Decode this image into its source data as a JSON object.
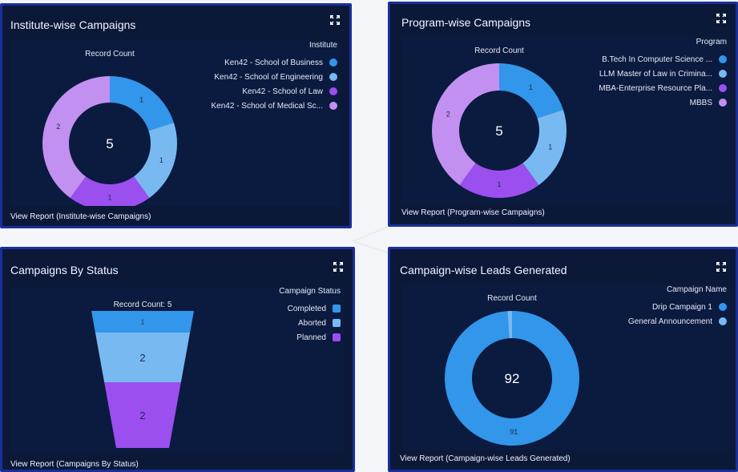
{
  "colors": {
    "card_bg": "#0c1838",
    "chart_bg": "#0b1a3f",
    "border": "#1a2f9a",
    "blue": "#3296ea",
    "light_blue": "#78b9f2",
    "purple": "#9b4fef",
    "lavender": "#c290f0"
  },
  "cards": [
    {
      "title": "Institute-wise Campaigns",
      "view_report": "View Report (Institute-wise Campaigns)",
      "expand_icon": "expand-icon"
    },
    {
      "title": "Program-wise Campaigns",
      "view_report": "View Report (Program-wise Campaigns)",
      "expand_icon": "expand-icon"
    },
    {
      "title": "Campaigns By Status",
      "view_report": "View Report (Campaigns By Status)",
      "expand_icon": "expand-icon"
    },
    {
      "title": "Campaign-wise Leads Generated",
      "view_report": "View Report (Campaign-wise Leads Generated)",
      "expand_icon": "expand-icon"
    }
  ],
  "chart_data": [
    {
      "type": "pie",
      "variant": "donut",
      "title": "Record Count",
      "legend_title": "Institute",
      "legend_placement": "top-right",
      "center_label": "5",
      "categories": [
        "Ken42 - School of Business",
        "Ken42 - School of Engineering",
        "Ken42 - School of Law",
        "Ken42 - School of Medical Sc..."
      ],
      "values": [
        1,
        1,
        1,
        2
      ],
      "colors": [
        "#3296ea",
        "#78b9f2",
        "#9b4fef",
        "#c290f0"
      ]
    },
    {
      "type": "pie",
      "variant": "donut",
      "title": "Record Count",
      "legend_title": "Program",
      "legend_placement": "top-right",
      "center_label": "5",
      "categories": [
        "B.Tech In Computer Science ...",
        "LLM Master of Law in Crimina...",
        "MBA-Enterprise Resource Pla...",
        "MBBS"
      ],
      "values": [
        1,
        1,
        1,
        2
      ],
      "colors": [
        "#3296ea",
        "#78b9f2",
        "#9b4fef",
        "#c290f0"
      ]
    },
    {
      "type": "funnel",
      "title": "Record Count: 5",
      "legend_title": "Campaign Status",
      "legend_placement": "top-right",
      "categories": [
        "Completed",
        "Aborted",
        "Planned"
      ],
      "values": [
        1,
        2,
        2
      ],
      "colors": [
        "#3296ea",
        "#78b9f2",
        "#9b4fef"
      ]
    },
    {
      "type": "pie",
      "variant": "donut",
      "title": "Record Count",
      "legend_title": "Campaign Name",
      "legend_placement": "top-right",
      "center_label": "92",
      "categories": [
        "Drip Campaign 1",
        "General Announcement"
      ],
      "values": [
        91,
        1
      ],
      "colors": [
        "#3296ea",
        "#78b9f2"
      ],
      "shown_labels": [
        "91",
        ""
      ]
    }
  ]
}
